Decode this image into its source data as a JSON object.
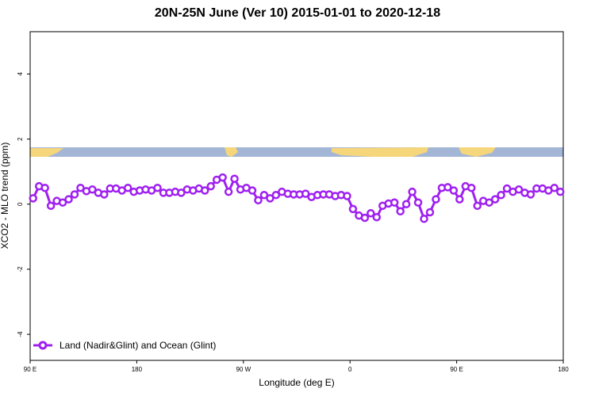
{
  "chart_data": {
    "type": "line",
    "title": "20N-25N June (Ver 10)   2015-01-01 to 2020-12-18",
    "x_label": "Longitude (deg E)",
    "y_label": "XCO2 - MLO trend (ppm)",
    "xlim": [
      90,
      540
    ],
    "ylim": [
      -4.8,
      5.3
    ],
    "xticks": [
      {
        "value": 90,
        "label": "90 E"
      },
      {
        "value": 180,
        "label": "180"
      },
      {
        "value": 270,
        "label": "90 W"
      },
      {
        "value": 360,
        "label": "0"
      },
      {
        "value": 450,
        "label": "90 E"
      },
      {
        "value": 540,
        "label": "180"
      }
    ],
    "yticks": [
      -4,
      -2,
      0,
      2,
      4
    ],
    "legend": "bottom-left",
    "x": [
      92.5,
      97.5,
      102.5,
      107.5,
      112.5,
      117.5,
      122.5,
      127.5,
      132.5,
      137.5,
      142.5,
      147.5,
      152.5,
      157.5,
      162.5,
      167.5,
      172.5,
      177.5,
      182.5,
      187.5,
      192.5,
      197.5,
      202.5,
      207.5,
      212.5,
      217.5,
      222.5,
      227.5,
      232.5,
      237.5,
      242.5,
      247.5,
      252.5,
      257.5,
      262.5,
      267.5,
      272.5,
      277.5,
      282.5,
      287.5,
      292.5,
      297.5,
      302.5,
      307.5,
      312.5,
      317.5,
      322.5,
      327.5,
      332.5,
      337.5,
      342.5,
      347.5,
      352.5,
      357.5,
      362.5,
      367.5,
      372.5,
      377.5,
      382.5,
      387.5,
      392.5,
      397.5,
      402.5,
      407.5,
      412.5,
      417.5,
      422.5,
      427.5,
      432.5,
      437.5,
      442.5,
      447.5,
      452.5,
      457.5,
      462.5,
      467.5,
      472.5,
      477.5,
      482.5,
      487.5,
      492.5,
      497.5,
      502.5,
      507.5,
      512.5,
      517.5,
      522.5,
      527.5,
      532.5,
      537.5
    ],
    "series": [
      {
        "name": "Land (Nadir&Glint) and Ocean (Glint)",
        "color": "#a020f0",
        "values": [
          0.18,
          0.55,
          0.5,
          -0.05,
          0.1,
          0.05,
          0.15,
          0.3,
          0.5,
          0.4,
          0.45,
          0.35,
          0.3,
          0.48,
          0.48,
          0.42,
          0.5,
          0.38,
          0.42,
          0.45,
          0.42,
          0.5,
          0.35,
          0.35,
          0.38,
          0.35,
          0.45,
          0.42,
          0.48,
          0.42,
          0.55,
          0.75,
          0.82,
          0.38,
          0.78,
          0.45,
          0.5,
          0.42,
          0.12,
          0.28,
          0.18,
          0.28,
          0.38,
          0.32,
          0.3,
          0.3,
          0.32,
          0.22,
          0.28,
          0.3,
          0.3,
          0.25,
          0.28,
          0.25,
          -0.15,
          -0.35,
          -0.42,
          -0.28,
          -0.4,
          -0.05,
          0.02,
          0.05,
          -0.22,
          0.0,
          0.38,
          0.05,
          -0.45,
          -0.25,
          0.15,
          0.5,
          0.52,
          0.42,
          0.15,
          0.55,
          0.5,
          -0.05,
          0.1,
          0.05,
          0.15,
          0.28,
          0.48,
          0.38,
          0.45,
          0.35,
          0.3,
          0.48,
          0.48,
          0.42,
          0.5,
          0.38
        ]
      }
    ]
  }
}
